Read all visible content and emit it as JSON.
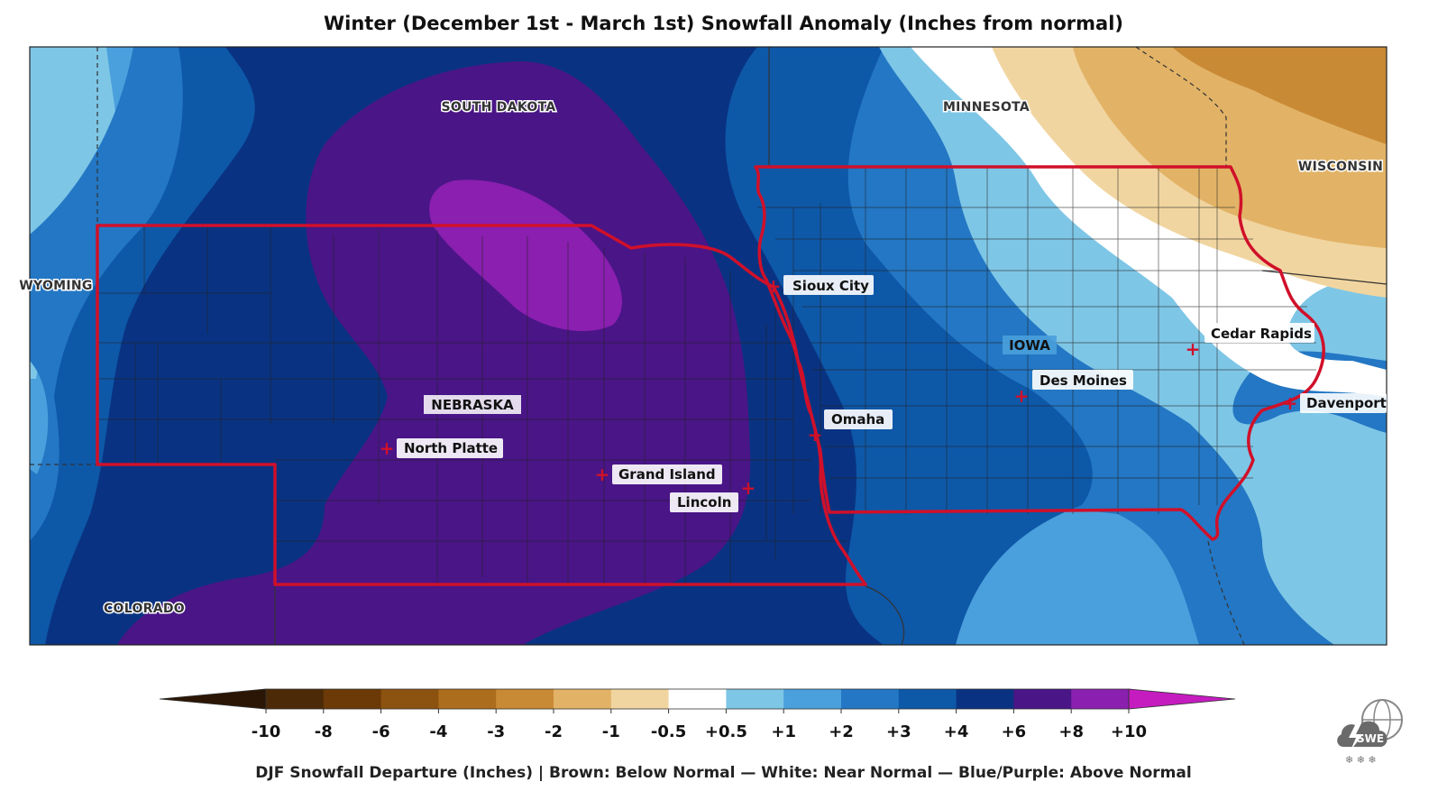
{
  "title": "Winter (December 1st - March 1st) Snowfall Anomaly (Inches from normal)",
  "state_labels": {
    "south_dakota": "SOUTH DAKOTA",
    "minnesota": "MINNESOTA",
    "wisconsin": "WISCONSIN",
    "wyoming": "WYOMING",
    "iowa": "IOWA",
    "nebraska": "NEBRASKA",
    "colorado": "COLORADO"
  },
  "cities": {
    "sioux_city": "Sioux City",
    "cedar_rapids": "Cedar Rapids",
    "des_moines": "Des Moines",
    "davenport": "Davenport",
    "omaha": "Omaha",
    "north_platte": "North Platte",
    "grand_island": "Grand Island",
    "lincoln": "Lincoln"
  },
  "colorbar": {
    "tick_labels": [
      "-10",
      "-8",
      "-6",
      "-4",
      "-3",
      "-2",
      "-1",
      "-0.5",
      "+0.5",
      "+1",
      "+2",
      "+3",
      "+4",
      "+6",
      "+8",
      "+10"
    ],
    "colors": [
      "#2b1605",
      "#4d2a07",
      "#6b3a07",
      "#8c520f",
      "#ac6d1c",
      "#c98a36",
      "#e2b366",
      "#f1d5a0",
      "#ffffff",
      "#7ec6e6",
      "#4aa0dc",
      "#2377c4",
      "#0e58a8",
      "#093382",
      "#4a1587",
      "#8a1fb0",
      "#c51cc0"
    ],
    "caption": "DJF Snowfall Departure (Inches)  |  Brown: Below Normal  —  White: Near Normal  —  Blue/Purple: Above Normal"
  },
  "logo_text": "SWE",
  "colors": {
    "highlight_border": "#d0102a",
    "marker": "#d0102a"
  }
}
